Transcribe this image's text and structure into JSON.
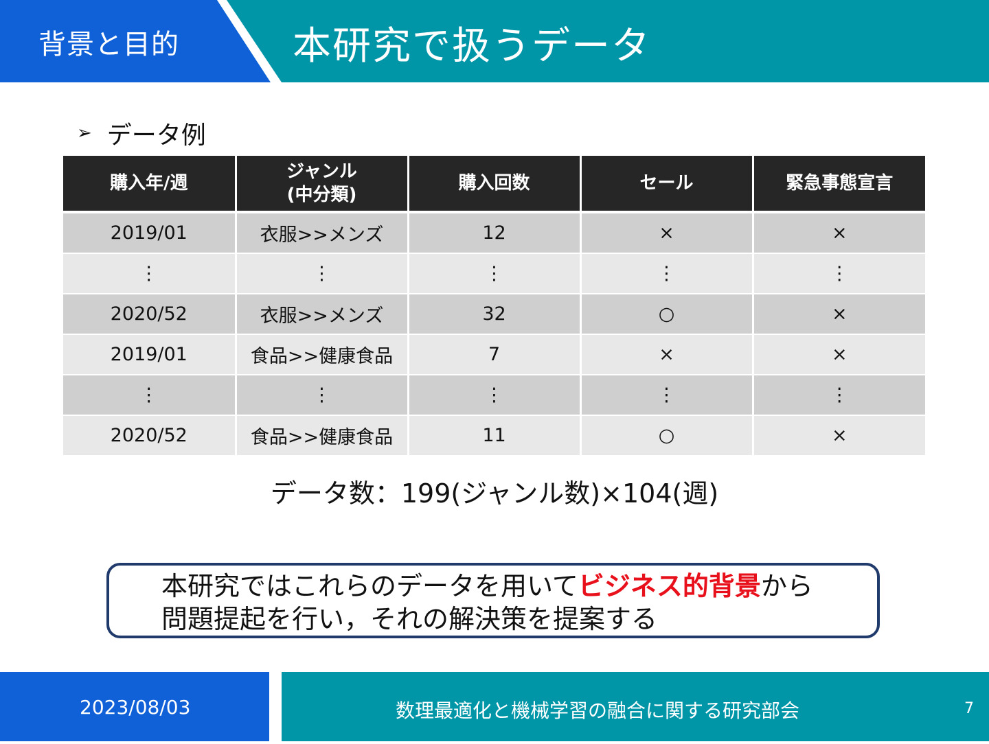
{
  "colors": {
    "primary_blue": "#1060d8",
    "teal": "#0096a8",
    "header_dark": "#262626",
    "emphasis_red": "#e8101a"
  },
  "header": {
    "section": "背景と目的",
    "title": "本研究で扱うデータ"
  },
  "bullet": {
    "icon": "arrow-bullet-icon",
    "text": "データ例"
  },
  "table": {
    "headers": [
      "購入年/週",
      "ジャンル\n(中分類)",
      "購入回数",
      "セール",
      "緊急事態宣言"
    ],
    "rows": [
      [
        "2019/01",
        "衣服>>メンズ",
        "12",
        "×",
        "×"
      ],
      [
        "⋮",
        "⋮",
        "⋮",
        "⋮",
        "⋮"
      ],
      [
        "2020/52",
        "衣服>>メンズ",
        "32",
        "○",
        "×"
      ],
      [
        "2019/01",
        "食品>>健康食品",
        "7",
        "×",
        "×"
      ],
      [
        "⋮",
        "⋮",
        "⋮",
        "⋮",
        "⋮"
      ],
      [
        "2020/52",
        "食品>>健康食品",
        "11",
        "○",
        "×"
      ]
    ]
  },
  "data_count": "データ数：199(ジャンル数)×104(週)",
  "callout": {
    "part1": "本研究ではこれらのデータを用いて",
    "emphasis": "ビジネス的背景",
    "part2": "から",
    "line2": "問題提起を行い，それの解決策を提案する"
  },
  "footer": {
    "date": "2023/08/03",
    "title": "数理最適化と機械学習の融合に関する研究部会",
    "page": "7"
  }
}
